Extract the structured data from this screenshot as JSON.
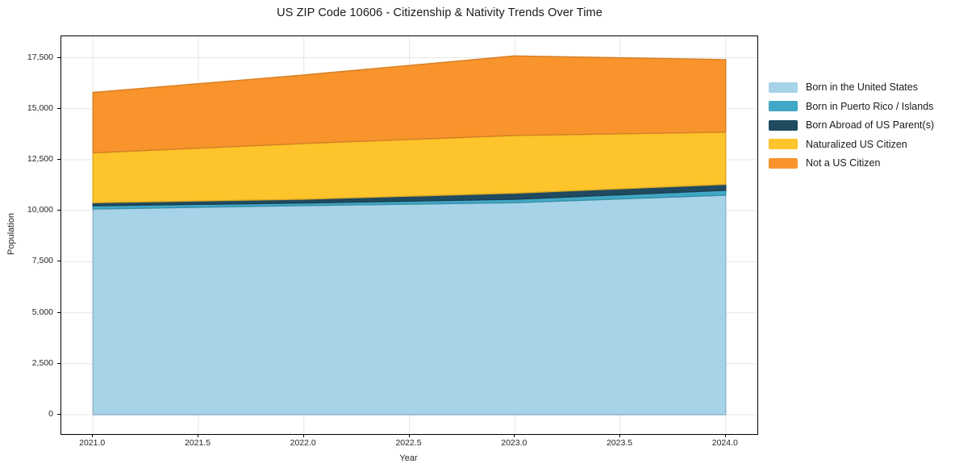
{
  "chart_data": {
    "type": "area",
    "stacked": true,
    "title": "US ZIP Code 10606 - Citizenship & Nativity Trends Over Time",
    "xlabel": "Year",
    "ylabel": "Population",
    "x": [
      2021,
      2022,
      2023,
      2024
    ],
    "series": [
      {
        "name": "Born in the United States",
        "color": "#a7d3e8",
        "values": [
          10080,
          10250,
          10390,
          10760
        ]
      },
      {
        "name": "Born in Puerto Rico / Islands",
        "color": "#41a8c5",
        "values": [
          160,
          130,
          170,
          240
        ]
      },
      {
        "name": "Born Abroad of US Parent(s)",
        "color": "#1f4a5f",
        "values": [
          150,
          185,
          300,
          290
        ]
      },
      {
        "name": "Naturalized US Citizen",
        "color": "#fdc42b",
        "values": [
          2450,
          2730,
          2830,
          2560
        ]
      },
      {
        "name": "Not a US Citizen",
        "color": "#f8942b",
        "values": [
          2960,
          3360,
          3900,
          3555
        ]
      }
    ],
    "totals": [
      15800,
      16655,
      17590,
      17405
    ],
    "xticks": {
      "values": [
        2021.0,
        2021.5,
        2022.0,
        2022.5,
        2023.0,
        2023.5,
        2024.0
      ],
      "labels": [
        "2021.0",
        "2021.5",
        "2022.0",
        "2022.5",
        "2023.0",
        "2023.5",
        "2024.0"
      ]
    },
    "yticks": {
      "values": [
        0,
        2500,
        5000,
        7500,
        10000,
        12500,
        15000,
        17500
      ],
      "labels": [
        "0",
        "2,500",
        "5,000",
        "7,500",
        "10,000",
        "12,500",
        "15,000",
        "17,500"
      ]
    },
    "xlim": [
      2020.85,
      2024.15
    ],
    "ylim": [
      -950,
      18550
    ],
    "grid": true,
    "legend_position": "right",
    "grid_color": "#e7e7e7",
    "axis_color": "#000000",
    "text_color": "#262626"
  }
}
